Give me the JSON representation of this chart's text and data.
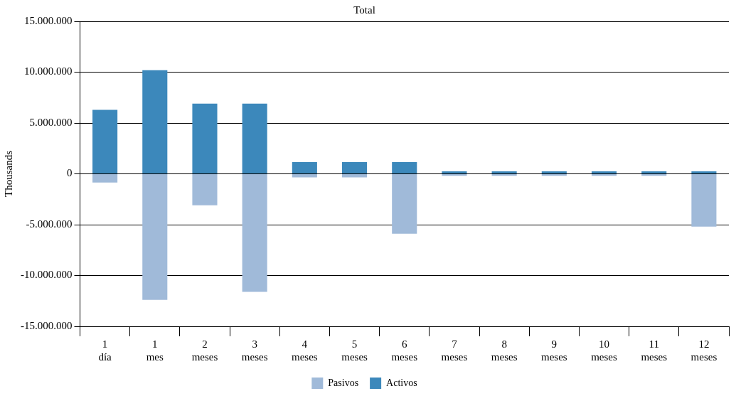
{
  "chart_data": {
    "type": "bar",
    "title": "Total",
    "ylabel": "Thousands",
    "stacked": true,
    "grid": "y",
    "legend": "bottom",
    "categories": [
      "1 día",
      "1 mes",
      "2 meses",
      "3 meses",
      "4 meses",
      "5 meses",
      "6 meses",
      "7 meses",
      "8 meses",
      "9 meses",
      "10 meses",
      "11 meses",
      "12 meses"
    ],
    "series": [
      {
        "name": "Pasivos",
        "color": "#a0bad9",
        "values": [
          -850000,
          -12400000,
          -3100000,
          -11600000,
          -350000,
          -350000,
          -5900000,
          -200000,
          -200000,
          -200000,
          -200000,
          -200000,
          -5200000
        ]
      },
      {
        "name": "Activos",
        "color": "#3c88bb",
        "values": [
          6300000,
          10200000,
          6900000,
          6900000,
          1150000,
          1150000,
          1150000,
          250000,
          250000,
          250000,
          250000,
          250000,
          250000
        ]
      }
    ],
    "ylim": [
      -15000000,
      15000000
    ],
    "yticks": [
      {
        "value": -15000000,
        "label": "-15.000.000"
      },
      {
        "value": -10000000,
        "label": "-10.000.000"
      },
      {
        "value": -5000000,
        "label": "-5.000.000"
      },
      0,
      {
        "value": 5000000,
        "label": "5.000.000"
      },
      {
        "value": 10000000,
        "label": "10.000.000"
      },
      {
        "value": 15000000,
        "label": "15.000.000"
      }
    ]
  }
}
